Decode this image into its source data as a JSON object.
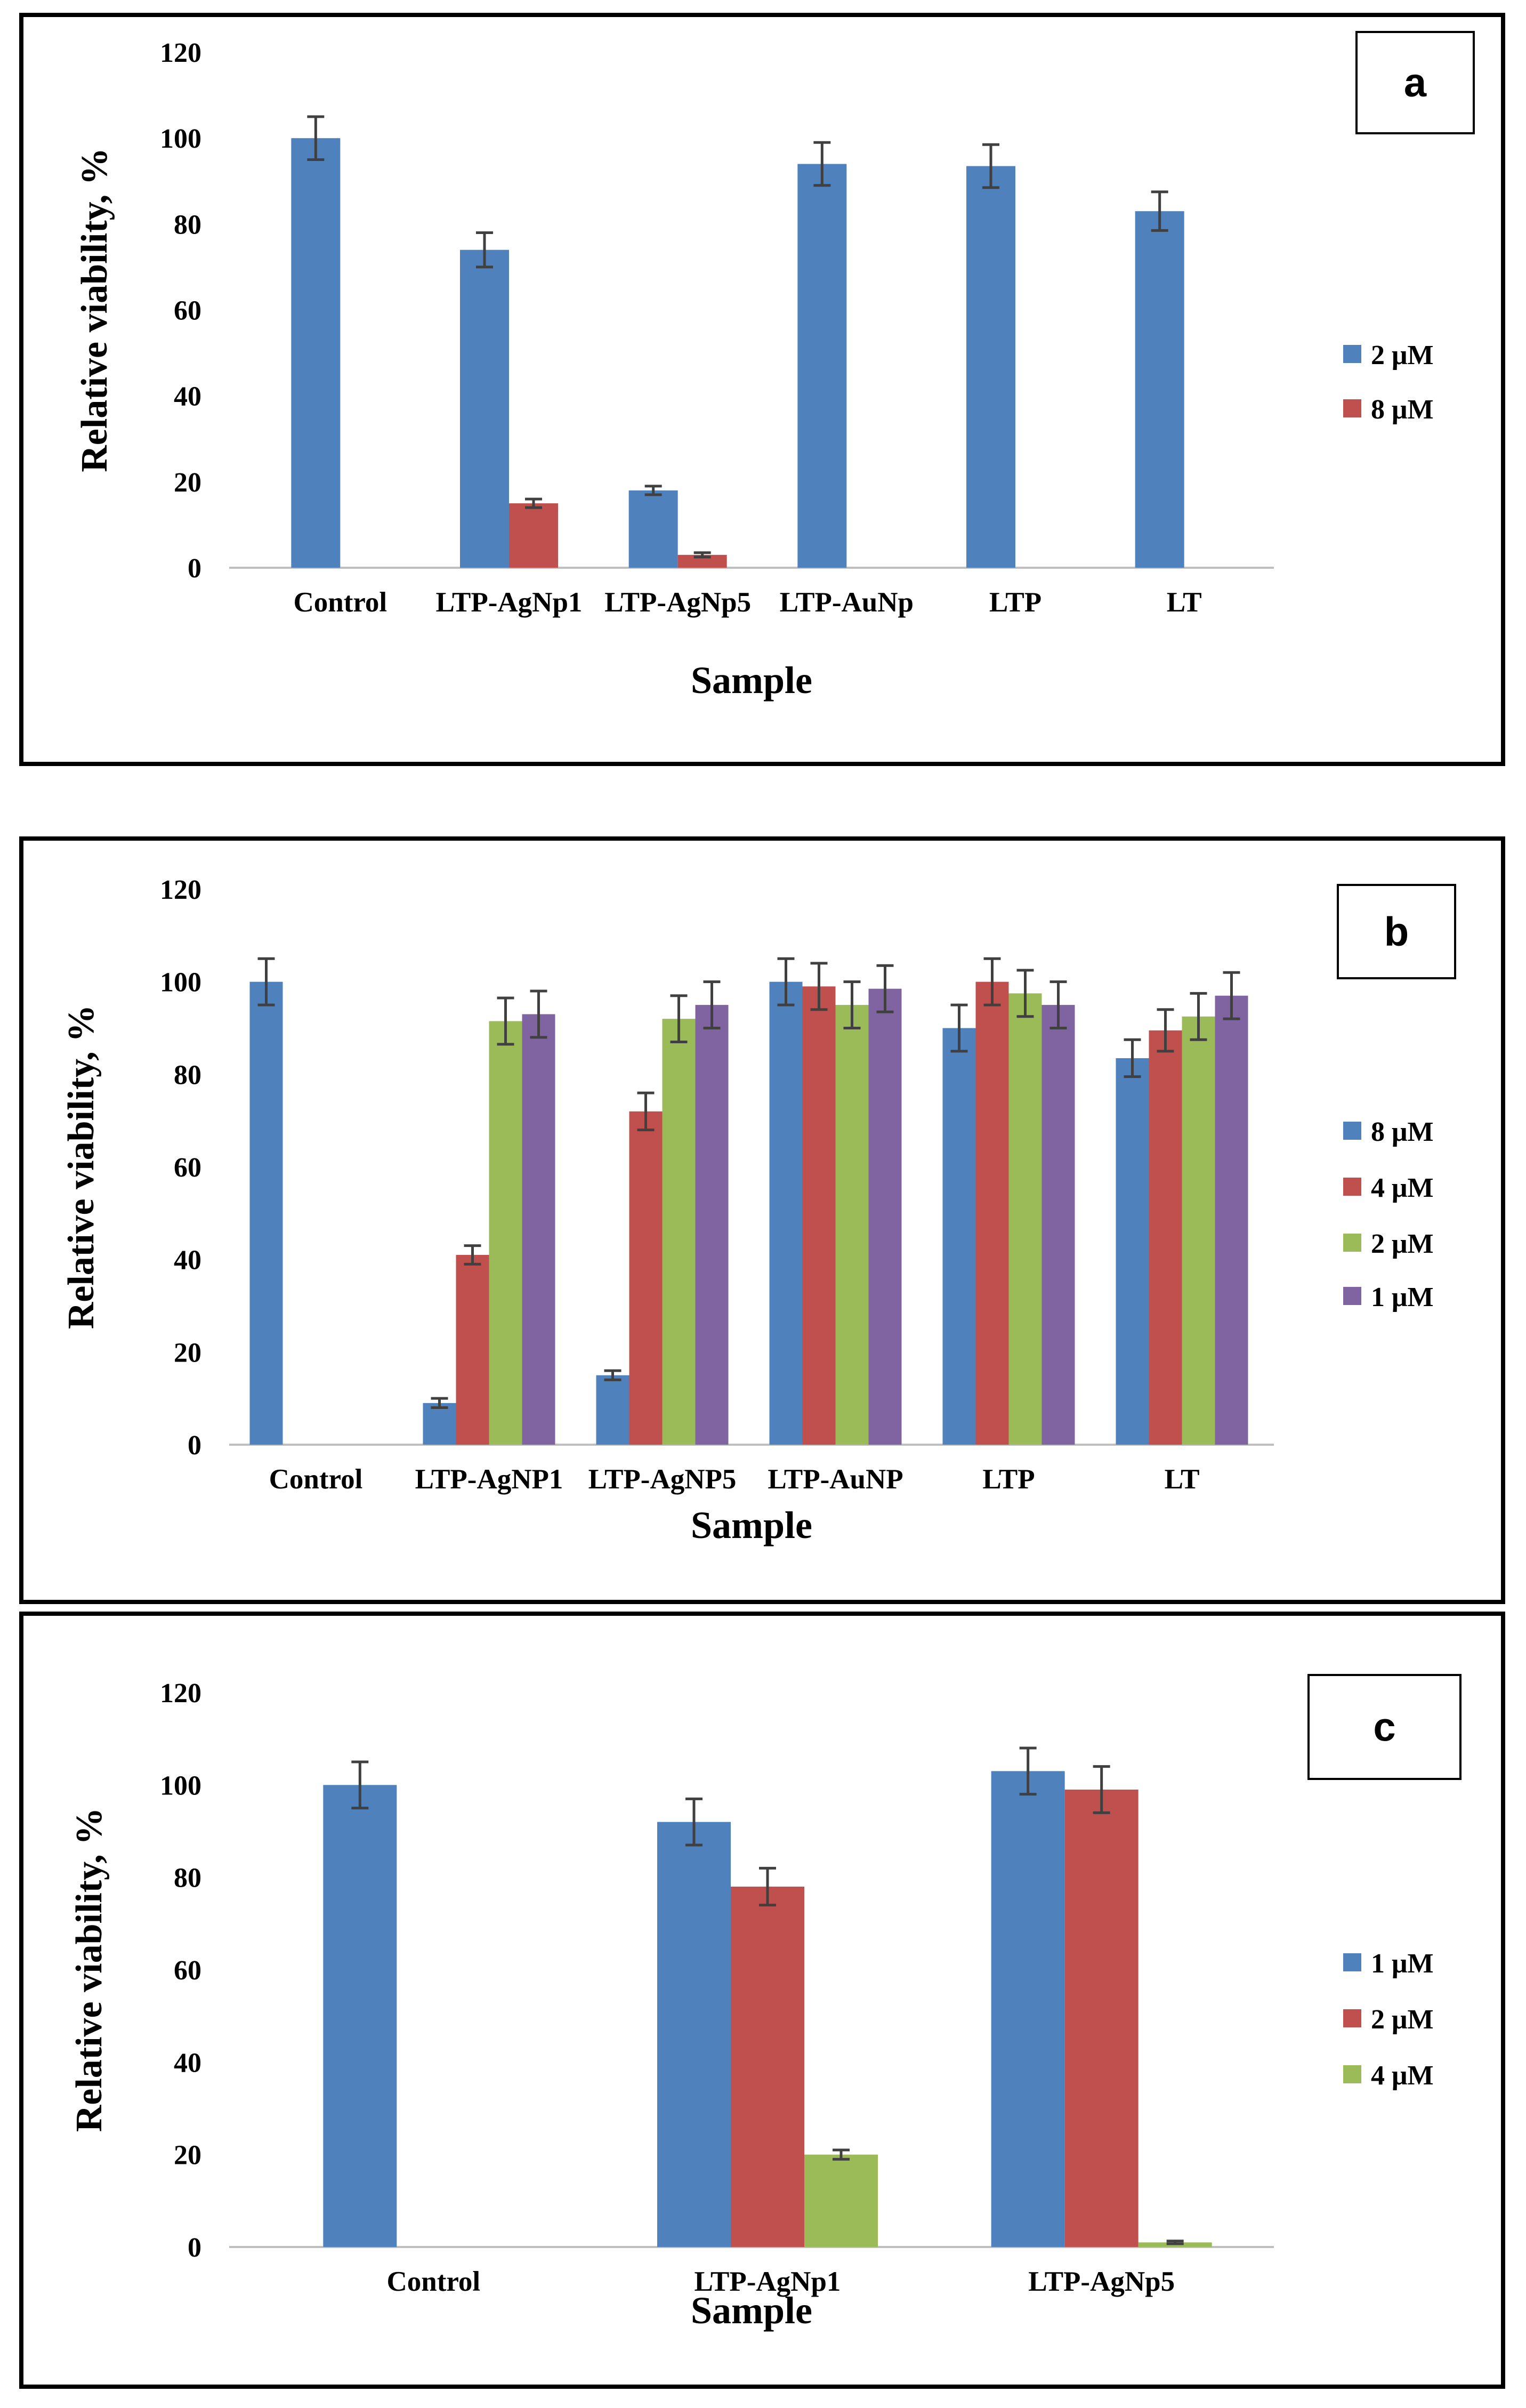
{
  "chart_data": [
    {
      "type": "bar",
      "panel_label": "a",
      "categories": [
        "Control",
        "LTP-AgNp1",
        "LTP-AgNp5",
        "LTP-AuNp",
        "LTP",
        "LT"
      ],
      "series": [
        {
          "name": "2 μM",
          "color": "#4f81bd",
          "values": [
            100,
            74,
            18,
            94,
            93.5,
            83
          ],
          "errors": [
            5,
            4,
            1,
            5,
            5,
            4.5
          ]
        },
        {
          "name": "8 μM",
          "color": "#c0504d",
          "values": [
            null,
            15,
            3,
            null,
            null,
            null
          ],
          "errors": [
            0,
            1,
            0.5,
            0,
            0,
            0
          ]
        }
      ],
      "xlabel": "Sample",
      "ylabel": "Relative viability, %",
      "ylim": [
        0,
        120
      ],
      "yticks": [
        "0",
        "20",
        "40",
        "60",
        "80",
        "100",
        "120"
      ],
      "legend": "right"
    },
    {
      "type": "bar",
      "panel_label": "b",
      "categories": [
        "Control",
        "LTP-AgNP1",
        "LTP-AgNP5",
        "LTP-AuNP",
        "LTP",
        "LT"
      ],
      "series": [
        {
          "name": "8 μM",
          "color": "#4f81bd",
          "values": [
            100,
            9,
            15,
            100,
            90,
            83.5
          ],
          "errors": [
            5,
            1,
            1,
            5,
            5,
            4
          ]
        },
        {
          "name": "4 μM",
          "color": "#c0504d",
          "values": [
            null,
            41,
            72,
            99,
            100,
            89.5
          ],
          "errors": [
            0,
            2,
            4,
            5,
            5,
            4.5
          ]
        },
        {
          "name": "2 μM",
          "color": "#9bbb59",
          "values": [
            null,
            91.5,
            92,
            95,
            97.5,
            92.5
          ],
          "errors": [
            0,
            5,
            5,
            5,
            5,
            5
          ]
        },
        {
          "name": "1 μM",
          "color": "#8064a2",
          "values": [
            null,
            93,
            95,
            98.5,
            95,
            97
          ],
          "errors": [
            0,
            5,
            5,
            5,
            5,
            5
          ]
        }
      ],
      "xlabel": "Sample",
      "ylabel": "Relative viability, %",
      "ylim": [
        0,
        120
      ],
      "yticks": [
        "0",
        "20",
        "40",
        "60",
        "80",
        "100",
        "120"
      ],
      "legend": "right"
    },
    {
      "type": "bar",
      "panel_label": "c",
      "categories": [
        "Control",
        "LTP-AgNp1",
        "LTP-AgNp5"
      ],
      "series": [
        {
          "name": "1 μM",
          "color": "#4f81bd",
          "values": [
            100,
            92,
            103
          ],
          "errors": [
            5,
            5,
            5
          ]
        },
        {
          "name": "2 μM",
          "color": "#c0504d",
          "values": [
            null,
            78,
            99
          ],
          "errors": [
            0,
            4,
            5
          ]
        },
        {
          "name": "4 μM",
          "color": "#9bbb59",
          "values": [
            null,
            20,
            1
          ],
          "errors": [
            0,
            1,
            0.3
          ]
        }
      ],
      "xlabel": "Sample",
      "ylabel": "Relative viability, %",
      "ylim": [
        0,
        120
      ],
      "yticks": [
        "0",
        "20",
        "40",
        "60",
        "80",
        "100",
        "120"
      ],
      "legend": "right"
    }
  ]
}
